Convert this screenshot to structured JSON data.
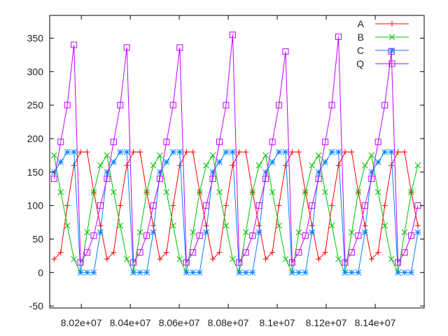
{
  "chart_data": {
    "type": "line",
    "title": "",
    "xlabel": "",
    "ylabel": "",
    "xlim": [
      80071000,
      81600000
    ],
    "ylim": [
      -53,
      384
    ],
    "grid": false,
    "legend_placement": "top-right",
    "xticks": [
      80200000,
      80400000,
      80600000,
      80800000,
      81000000,
      81200000,
      81400000
    ],
    "xtick_labels": [
      "8.02e+07",
      "8.04e+07",
      "8.06e+07",
      "8.08e+07",
      "8.1e+07",
      "8.12e+07",
      "8.14e+07"
    ],
    "yticks": [
      -50,
      0,
      50,
      100,
      150,
      200,
      250,
      300,
      350
    ],
    "ytick_labels": [
      "-50",
      "0",
      "50",
      "100",
      "150",
      "200",
      "250",
      "300",
      "350"
    ],
    "x": [
      80089000,
      80116000,
      80143000,
      80170000,
      80197000,
      80224000,
      80251000,
      80278000,
      80305000,
      80332000,
      80359000,
      80386000,
      80413000,
      80440000,
      80467000,
      80494000,
      80521000,
      80548000,
      80575000,
      80602000,
      80629000,
      80656000,
      80683000,
      80710000,
      80737000,
      80764000,
      80791000,
      80818000,
      80845000,
      80872000,
      80899000,
      80926000,
      80953000,
      80980000,
      81007000,
      81034000,
      81061000,
      81088000,
      81115000,
      81142000,
      81169000,
      81196000,
      81223000,
      81250000,
      81277000,
      81304000,
      81331000,
      81358000,
      81385000,
      81412000,
      81439000,
      81466000,
      81493000,
      81520000,
      81547000,
      81574000
    ],
    "series": [
      {
        "name": "A",
        "color": "#ff0000",
        "marker": "plus",
        "values": [
          20,
          30,
          100,
          160,
          180,
          180,
          120,
          70,
          20,
          30,
          100,
          160,
          180,
          180,
          120,
          70,
          20,
          30,
          100,
          160,
          180,
          180,
          120,
          70,
          20,
          30,
          100,
          160,
          180,
          180,
          120,
          70,
          20,
          30,
          100,
          160,
          180,
          180,
          120,
          70,
          20,
          30,
          100,
          160,
          180,
          180,
          120,
          70,
          20,
          30,
          100,
          160,
          180,
          180,
          120,
          70
        ]
      },
      {
        "name": "B",
        "color": "#00c000",
        "marker": "cross",
        "values": [
          175,
          120,
          70,
          20,
          0,
          60,
          120,
          160,
          175,
          120,
          70,
          20,
          0,
          60,
          120,
          160,
          175,
          120,
          70,
          20,
          0,
          60,
          120,
          160,
          175,
          120,
          70,
          20,
          0,
          60,
          120,
          160,
          175,
          120,
          70,
          20,
          0,
          60,
          120,
          160,
          175,
          120,
          70,
          20,
          0,
          60,
          120,
          160,
          175,
          120,
          70,
          20,
          0,
          60,
          120,
          160
        ]
      },
      {
        "name": "C",
        "color": "#0080ff",
        "marker": "star",
        "values": [
          150,
          165,
          180,
          180,
          0,
          0,
          0,
          60,
          150,
          165,
          180,
          180,
          0,
          0,
          0,
          60,
          150,
          165,
          180,
          180,
          0,
          0,
          0,
          60,
          150,
          165,
          180,
          180,
          0,
          0,
          0,
          60,
          150,
          165,
          180,
          180,
          0,
          0,
          0,
          60,
          150,
          165,
          180,
          180,
          0,
          0,
          0,
          60,
          150,
          165,
          180,
          180,
          0,
          0,
          0,
          60
        ]
      },
      {
        "name": "Q",
        "color": "#c000ff",
        "marker": "box",
        "values": [
          140,
          195,
          250,
          340,
          15,
          30,
          55,
          100,
          140,
          195,
          250,
          336,
          15,
          30,
          55,
          100,
          140,
          195,
          250,
          336,
          15,
          30,
          55,
          100,
          140,
          195,
          250,
          355,
          15,
          30,
          55,
          100,
          140,
          195,
          250,
          330,
          15,
          30,
          55,
          100,
          140,
          195,
          250,
          352,
          15,
          30,
          55,
          100,
          140,
          195,
          250,
          330,
          15,
          30,
          55,
          100
        ]
      }
    ]
  }
}
